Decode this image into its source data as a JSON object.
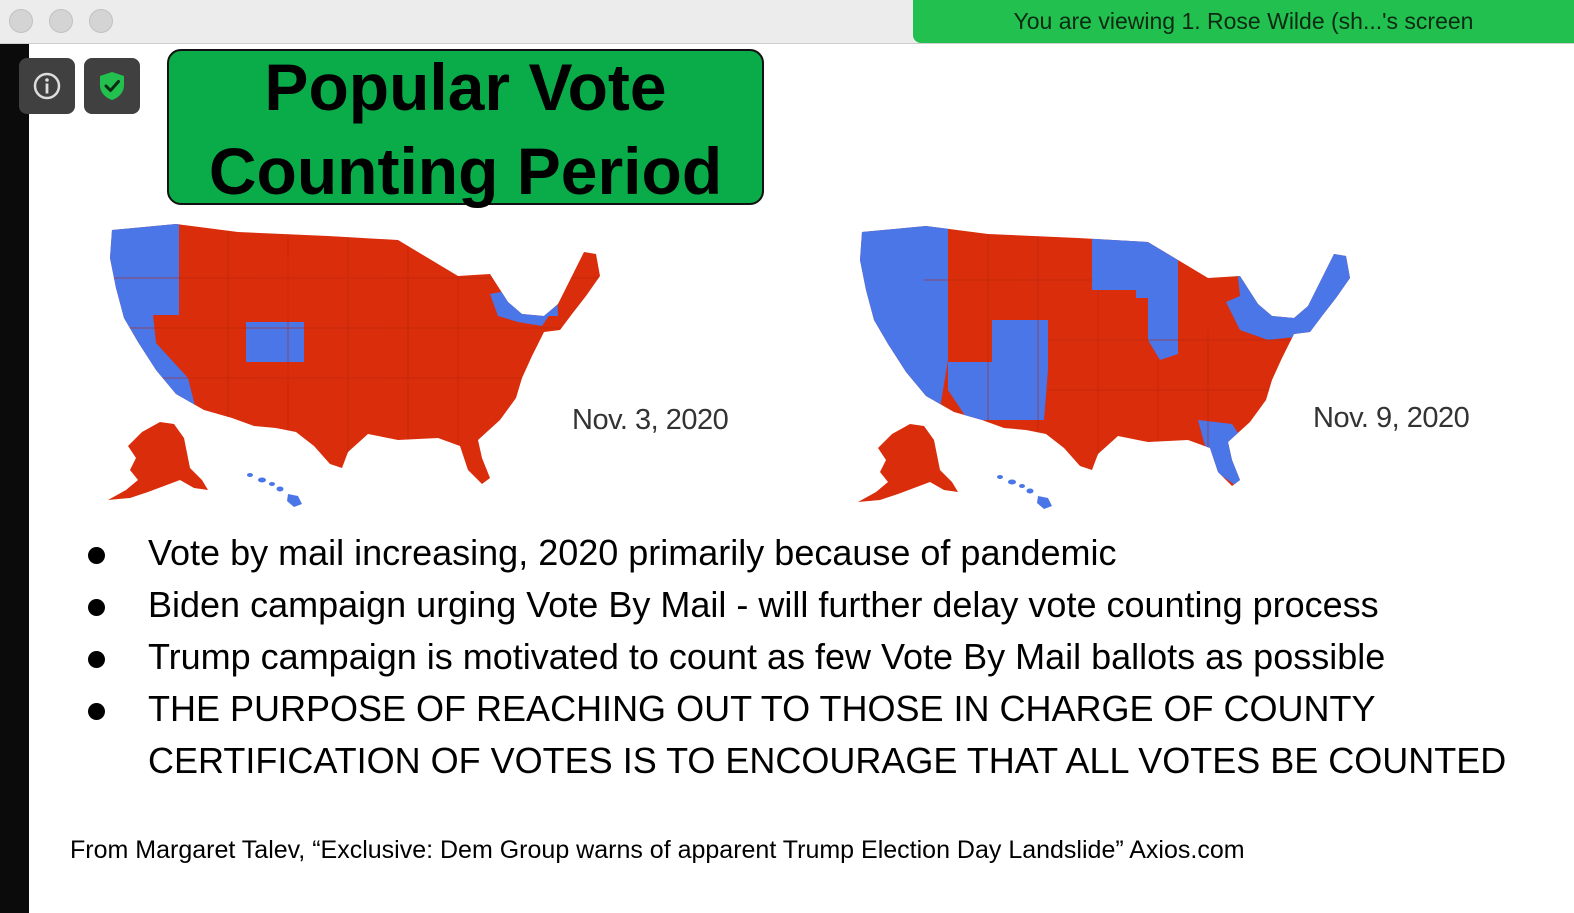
{
  "window": {
    "traffic_lights": [
      "close",
      "minimize",
      "zoom"
    ],
    "share_banner": "You are viewing 1. Rose Wilde (sh...'s screen",
    "banner_color": "#22c04e"
  },
  "toolbar": {
    "icons": [
      "info-icon",
      "shield-check-icon"
    ],
    "shield_color": "#22c04e"
  },
  "slide": {
    "title_line1": "Popular Vote",
    "title_line2": "Counting Period",
    "title_bg": "#0aab49",
    "maps": [
      {
        "date": "Nov. 3, 2020",
        "colors": {
          "red": "#d92d0c",
          "blue": "#4a76e8"
        }
      },
      {
        "date": "Nov. 9, 2020",
        "colors": {
          "red": "#d92d0c",
          "blue": "#4a76e8"
        }
      }
    ],
    "bullets": [
      "Vote by mail increasing, 2020 primarily because of pandemic",
      "Biden campaign urging Vote By Mail - will further delay vote counting process",
      "Trump campaign is motivated to count as few Vote By Mail ballots as possible",
      "THE PURPOSE OF REACHING OUT TO THOSE IN CHARGE OF COUNTY CERTIFICATION OF VOTES IS TO ENCOURAGE THAT ALL VOTES BE COUNTED"
    ],
    "citation": "From Margaret Talev, “Exclusive: Dem Group warns of apparent Trump Election Day Landslide” Axios.com"
  }
}
